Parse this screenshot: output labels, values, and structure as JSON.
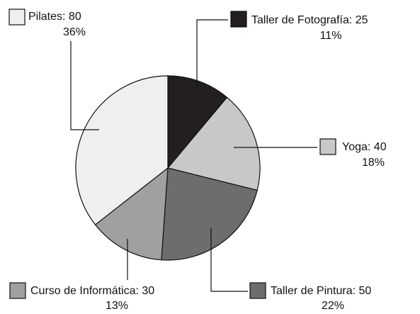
{
  "chart_data": {
    "type": "pie",
    "values": [
      25,
      40,
      50,
      30,
      80
    ],
    "value_labels": [
      "Taller de Fotografía: 25",
      "Yoga: 40",
      "Taller de Pintura: 50",
      "Curso de Informática: 30",
      "Pilates: 80"
    ],
    "percent_labels": [
      "11%",
      "18%",
      "22%",
      "13%",
      "36%"
    ],
    "colors": [
      "#231f20",
      "#c8c8c8",
      "#6d6d6d",
      "#a0a0a0",
      "#efefef"
    ],
    "start_angle": 0,
    "direction": "clockwise"
  }
}
